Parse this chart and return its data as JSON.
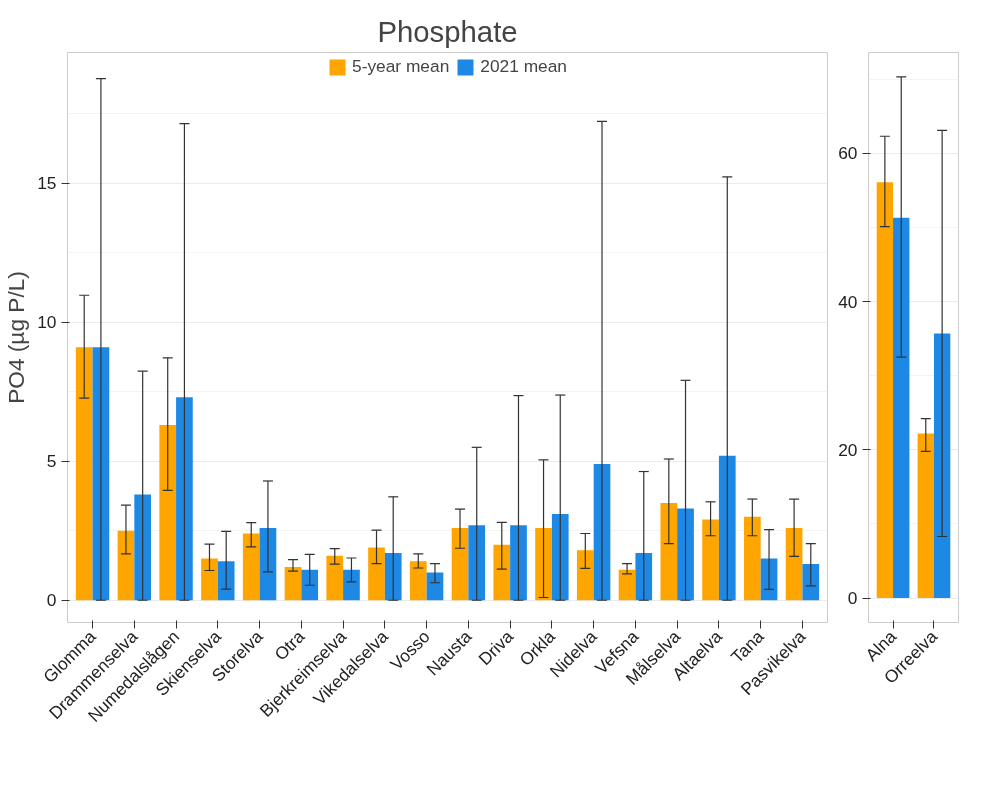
{
  "chart_data": [
    {
      "type": "bar",
      "title": "Phosphate",
      "ylabel": "PO4 (µg P/L)",
      "categories": [
        "Glomma",
        "Drammenselva",
        "Numedalslågen",
        "Skienselva",
        "Storelva",
        "Otra",
        "Bjerkreimselva",
        "Vikedalselva",
        "Vosso",
        "Nausta",
        "Driva",
        "Orkla",
        "Nidelva",
        "Vefsna",
        "Målselva",
        "Altaelva",
        "Tana",
        "Pasvikelva"
      ],
      "series": [
        {
          "name": "5-year mean",
          "color": "#ffa500",
          "values": [
            9.1,
            2.5,
            6.3,
            1.5,
            2.4,
            1.2,
            1.6,
            1.9,
            1.4,
            2.6,
            2.0,
            2.6,
            1.8,
            1.1,
            3.5,
            2.9,
            3.0,
            2.6
          ],
          "errors": [
            [
              7.27,
              10.97
            ],
            [
              1.67,
              3.42
            ],
            [
              3.95,
              8.72
            ],
            [
              1.07,
              2.02
            ],
            [
              1.92,
              2.79
            ],
            [
              1.05,
              1.46
            ],
            [
              1.3,
              1.86
            ],
            [
              1.32,
              2.52
            ],
            [
              1.16,
              1.67
            ],
            [
              1.87,
              3.28
            ],
            [
              1.12,
              2.8
            ],
            [
              0.1,
              5.05
            ],
            [
              1.15,
              2.4
            ],
            [
              0.95,
              1.32
            ],
            [
              2.04,
              5.08
            ],
            [
              2.32,
              3.54
            ],
            [
              2.32,
              3.64
            ],
            [
              1.58,
              3.64
            ]
          ]
        },
        {
          "name": "2021 mean",
          "color": "#1e88e5",
          "values": [
            9.1,
            3.8,
            7.3,
            1.4,
            2.6,
            1.1,
            1.1,
            1.7,
            1.0,
            2.7,
            2.7,
            3.1,
            4.9,
            1.7,
            3.3,
            5.2,
            1.5,
            1.3
          ],
          "errors": [
            [
              0,
              18.76
            ],
            [
              0,
              8.24
            ],
            [
              0,
              17.14
            ],
            [
              0.4,
              2.48
            ],
            [
              1.02,
              4.29
            ],
            [
              0.54,
              1.65
            ],
            [
              0.66,
              1.52
            ],
            [
              0,
              3.72
            ],
            [
              0.63,
              1.32
            ],
            [
              0,
              5.5
            ],
            [
              0,
              7.36
            ],
            [
              0,
              7.38
            ],
            [
              0,
              17.22
            ],
            [
              0,
              4.63
            ],
            [
              0,
              7.91
            ],
            [
              0,
              15.23
            ],
            [
              0.39,
              2.54
            ],
            [
              0.52,
              2.04
            ]
          ]
        }
      ],
      "ylim": [
        -0.8,
        19.7
      ],
      "yticks": [
        0,
        5,
        10,
        15
      ],
      "grid": true,
      "legend": "top"
    },
    {
      "type": "bar",
      "categories": [
        "Alna",
        "Orreelva"
      ],
      "series": [
        {
          "color": "#ffa500",
          "values": [
            56.1,
            22.2
          ],
          "errors": [
            [
              50.1,
              62.3
            ],
            [
              19.8,
              24.2
            ]
          ]
        },
        {
          "color": "#1e88e5",
          "values": [
            51.3,
            35.7
          ],
          "errors": [
            [
              32.5,
              70.3
            ],
            [
              8.3,
              63.1
            ]
          ]
        }
      ],
      "ylim": [
        -3.3,
        73.6
      ],
      "yticks": [
        0,
        20,
        40,
        60
      ],
      "grid": true
    }
  ]
}
